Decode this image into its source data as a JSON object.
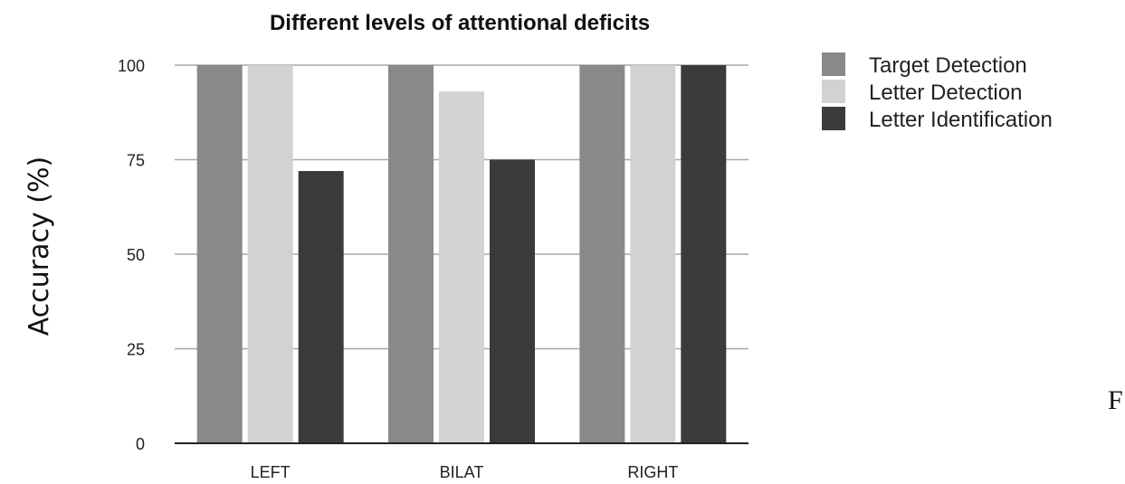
{
  "chart_data": {
    "type": "bar",
    "title": "Different levels of attentional deficits",
    "xlabel": "",
    "ylabel": "Accuracy (%)",
    "categories": [
      "LEFT",
      "BILAT",
      "RIGHT"
    ],
    "series": [
      {
        "name": "Target Detection",
        "values": [
          100,
          100,
          100
        ],
        "color": "#898989"
      },
      {
        "name": "Letter Detection",
        "values": [
          100,
          93,
          100
        ],
        "color": "#d2d2d2"
      },
      {
        "name": "Letter Identification",
        "values": [
          72,
          75,
          100
        ],
        "color": "#3b3b3b"
      }
    ],
    "ylim": [
      0,
      100
    ],
    "yticks": [
      "0",
      "25",
      "50",
      "75",
      "100"
    ],
    "grid": true,
    "legend_position": "right"
  },
  "fragment_text": "F"
}
